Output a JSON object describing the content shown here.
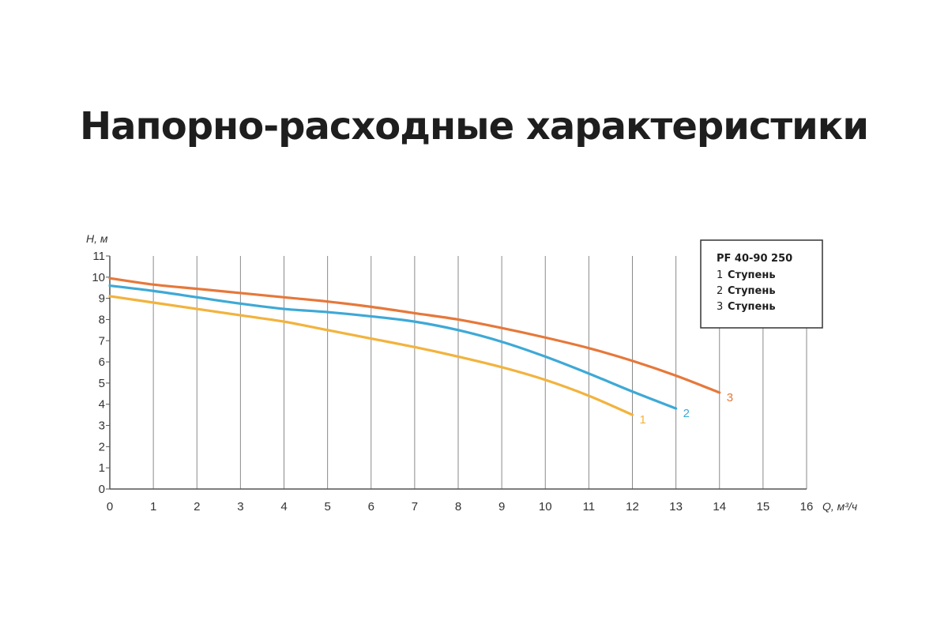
{
  "title": "Напорно-расходные характеристики",
  "chart_data": {
    "type": "line",
    "xlabel": "Q, м³/ч",
    "ylabel": "H, м",
    "xlim": [
      0,
      16
    ],
    "ylim": [
      0,
      11
    ],
    "x_ticks": [
      0,
      1,
      2,
      3,
      4,
      5,
      6,
      7,
      8,
      9,
      10,
      11,
      12,
      13,
      14,
      15,
      16
    ],
    "y_ticks": [
      0,
      1,
      2,
      3,
      4,
      5,
      6,
      7,
      8,
      9,
      10,
      11
    ],
    "grid": "vertical",
    "legend_position": "top-right",
    "legend_title": "PF 40-90 250",
    "series": [
      {
        "name": "Ступень",
        "number": "1",
        "color": "#f2b33d",
        "end_label": "1",
        "x": [
          0,
          1,
          2,
          3,
          4,
          5,
          6,
          7,
          8,
          9,
          10,
          11,
          12
        ],
        "y": [
          9.1,
          8.8,
          8.5,
          8.2,
          7.9,
          7.5,
          7.1,
          6.7,
          6.25,
          5.75,
          5.15,
          4.4,
          3.5
        ]
      },
      {
        "name": "Ступень",
        "number": "2",
        "color": "#3ea9d6",
        "end_label": "2",
        "x": [
          0,
          1,
          2,
          3,
          4,
          5,
          6,
          7,
          8,
          9,
          10,
          11,
          12,
          13
        ],
        "y": [
          9.6,
          9.35,
          9.05,
          8.75,
          8.5,
          8.35,
          8.15,
          7.9,
          7.5,
          6.95,
          6.25,
          5.45,
          4.6,
          3.8
        ]
      },
      {
        "name": "Ступень",
        "number": "3",
        "color": "#e6783a",
        "end_label": "3",
        "x": [
          0,
          1,
          2,
          3,
          4,
          5,
          6,
          7,
          8,
          9,
          10,
          11,
          12,
          13,
          14
        ],
        "y": [
          9.95,
          9.65,
          9.45,
          9.25,
          9.05,
          8.85,
          8.6,
          8.3,
          8.0,
          7.6,
          7.15,
          6.65,
          6.05,
          5.35,
          4.55
        ]
      }
    ]
  }
}
